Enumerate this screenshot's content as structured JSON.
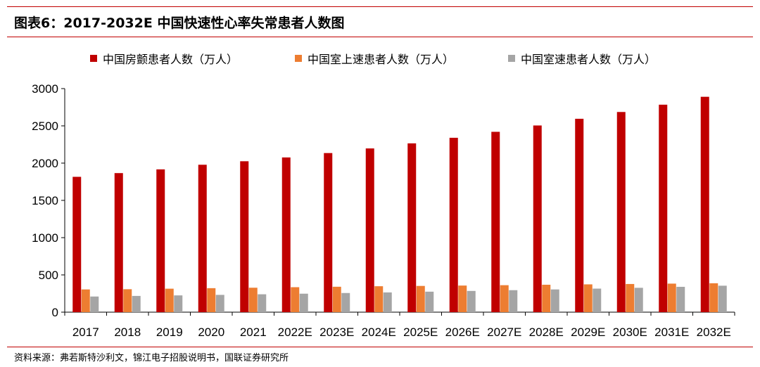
{
  "title": "图表6：2017-2032E 中国快速性心率失常患者人数图",
  "source": "资料来源：弗若斯特沙利文，锦江电子招股说明书，国联证券研究所",
  "colors": {
    "rule": "#c00000",
    "axis": "#000000"
  },
  "chart_data": {
    "type": "bar",
    "categories": [
      "2017",
      "2018",
      "2019",
      "2020",
      "2021",
      "2022E",
      "2023E",
      "2024E",
      "2025E",
      "2026E",
      "2027E",
      "2028E",
      "2029E",
      "2030E",
      "2031E",
      "2032E"
    ],
    "series": [
      {
        "name": "中国房颤患者人数（万人）",
        "color": "#c00000",
        "values": [
          1816,
          1866,
          1916,
          1978,
          2025,
          2076,
          2135,
          2197,
          2265,
          2340,
          2420,
          2505,
          2595,
          2686,
          2784,
          2890
        ]
      },
      {
        "name": "中国室上速患者人数（万人）",
        "color": "#ed7d31",
        "values": [
          305,
          308,
          315,
          322,
          328,
          335,
          341,
          348,
          352,
          357,
          362,
          368,
          373,
          378,
          383,
          388
        ]
      },
      {
        "name": "中国室速患者人数（万人）",
        "color": "#a5a5a5",
        "values": [
          210,
          218,
          225,
          232,
          240,
          248,
          257,
          265,
          275,
          285,
          295,
          305,
          316,
          327,
          340,
          355
        ]
      }
    ],
    "yticks": [
      0,
      500,
      1000,
      1500,
      2000,
      2500,
      3000
    ],
    "ylim": [
      0,
      3000
    ],
    "legend_position": "top",
    "grid": false
  }
}
